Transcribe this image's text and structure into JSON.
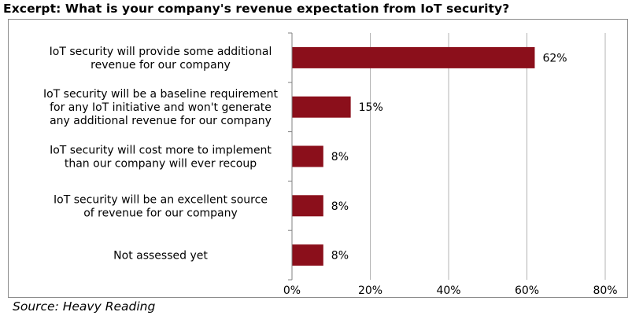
{
  "title": "Excerpt: What is your company's revenue expectation from IoT security?",
  "source": "Source: Heavy Reading",
  "chart_data": {
    "type": "bar",
    "orientation": "horizontal",
    "categories": [
      [
        "IoT security will provide some additional",
        "revenue for our company"
      ],
      [
        "IoT security will be a baseline requirement",
        "for any IoT initiative and won't generate",
        "any additional revenue for our company"
      ],
      [
        "IoT security will cost more to implement",
        "than our company will ever recoup"
      ],
      [
        "IoT security will be an excellent source",
        "of revenue for our company"
      ],
      [
        "Not assessed yet"
      ]
    ],
    "values": [
      62,
      15,
      8,
      8,
      8
    ],
    "value_labels": [
      "62%",
      "15%",
      "8%",
      "8%",
      "8%"
    ],
    "xlim": [
      0,
      80
    ],
    "xticks": [
      0,
      20,
      40,
      60,
      80
    ],
    "xtick_labels": [
      "0%",
      "20%",
      "40%",
      "60%",
      "80%"
    ],
    "grid": true,
    "bar_color": "#8b0f1b",
    "grid_color": "#b3b3b3"
  }
}
